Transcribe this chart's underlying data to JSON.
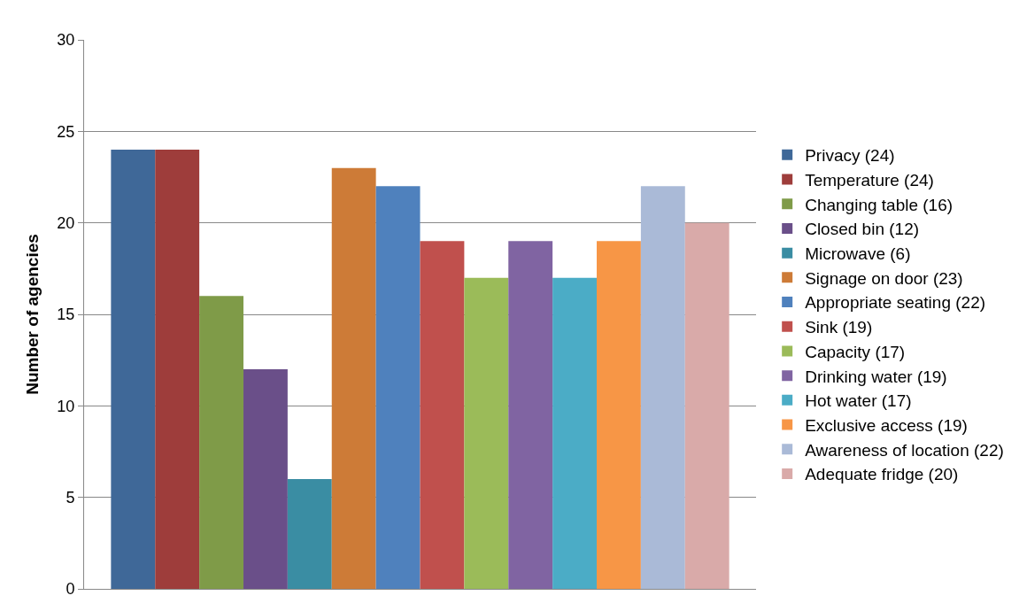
{
  "chart_data": {
    "type": "bar",
    "ylabel": "Number of agencies",
    "categories": [
      null
    ],
    "series": [
      {
        "name": "Privacy (24)",
        "color": "#3f6898",
        "values": [
          24
        ]
      },
      {
        "name": "Temperature (24)",
        "color": "#9e3d3b",
        "values": [
          24
        ]
      },
      {
        "name": "Changing table (16)",
        "color": "#7f9b48",
        "values": [
          16
        ]
      },
      {
        "name": "Closed bin (12)",
        "color": "#6a4f89",
        "values": [
          12
        ]
      },
      {
        "name": "Microwave (6)",
        "color": "#3a8da3",
        "values": [
          6
        ]
      },
      {
        "name": "Signage on door (23)",
        "color": "#cd7b37",
        "values": [
          23
        ]
      },
      {
        "name": "Appropriate seating (22)",
        "color": "#4f81bd",
        "values": [
          22
        ]
      },
      {
        "name": "Sink (19)",
        "color": "#c0504d",
        "values": [
          19
        ]
      },
      {
        "name": "Capacity (17)",
        "color": "#9bbb59",
        "values": [
          17
        ]
      },
      {
        "name": "Drinking water (19)",
        "color": "#8064a2",
        "values": [
          19
        ]
      },
      {
        "name": "Hot water (17)",
        "color": "#4bacc6",
        "values": [
          17
        ]
      },
      {
        "name": "Exclusive access (19)",
        "color": "#f79646",
        "values": [
          19
        ]
      },
      {
        "name": "Awareness of location (22)",
        "color": "#aabad7",
        "values": [
          22
        ]
      },
      {
        "name": "Adequate fridge (20)",
        "color": "#d9aaa9",
        "values": [
          20
        ]
      }
    ],
    "ylim": [
      0,
      30
    ],
    "yticks": [
      0,
      5,
      10,
      15,
      20,
      25,
      30
    ],
    "grid": "y",
    "legend": "right"
  }
}
